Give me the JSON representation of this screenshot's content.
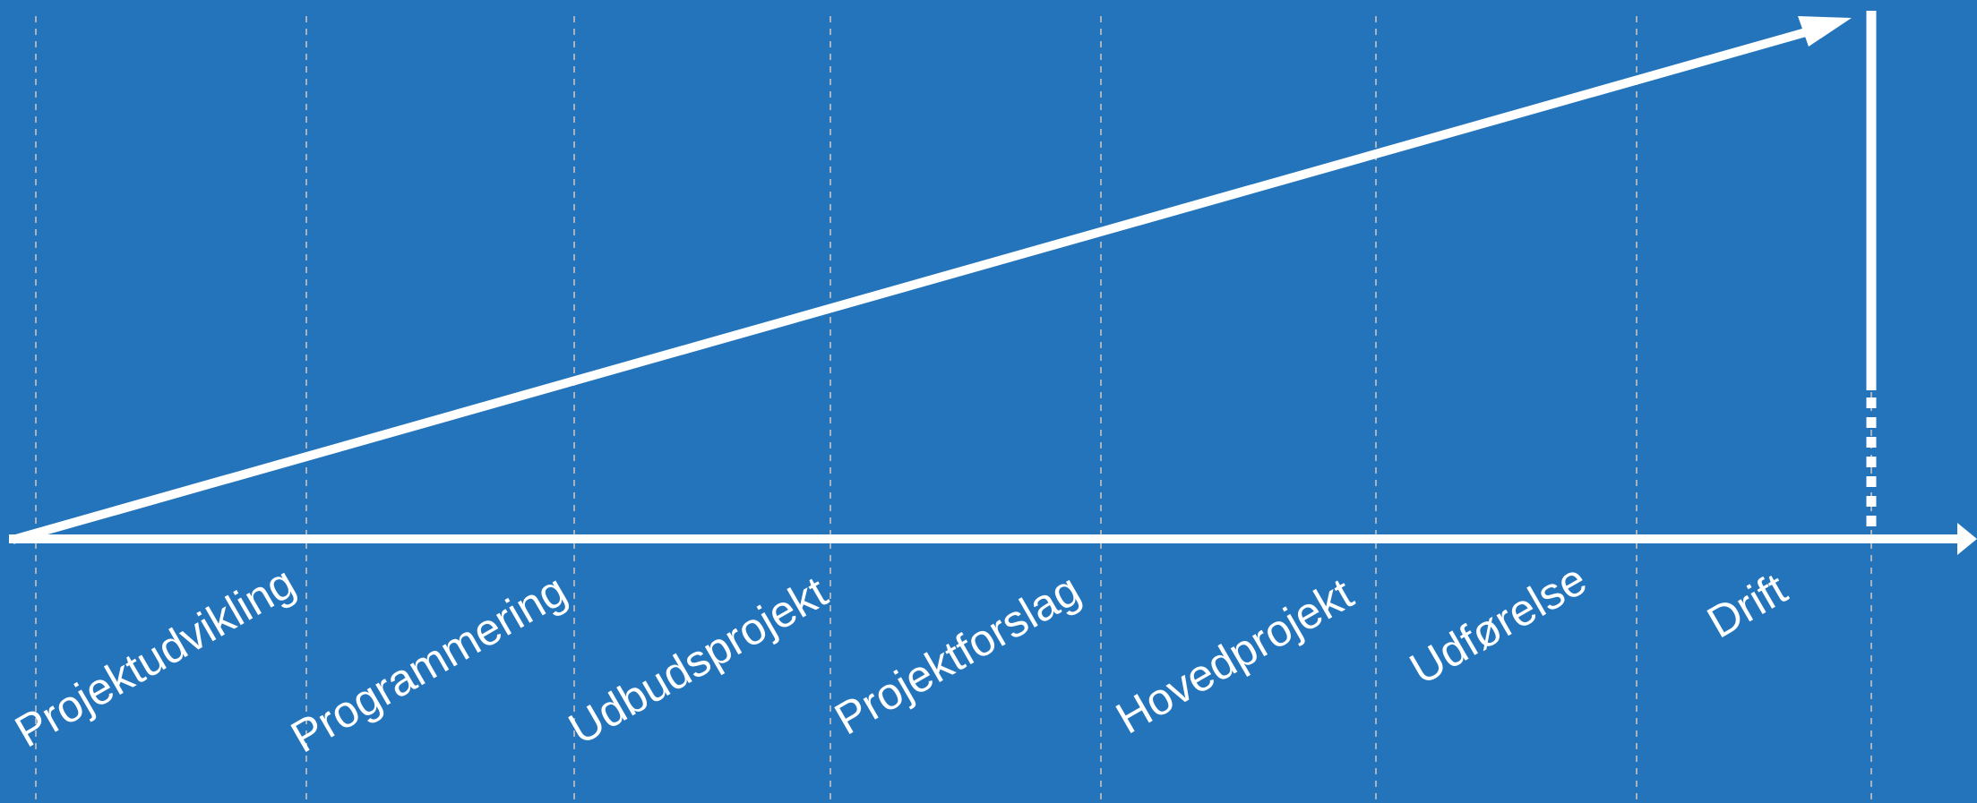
{
  "colors": {
    "background": "#2374BB",
    "foreground": "#FFFFFF",
    "guide_lines": "#A9B3BF"
  },
  "phases": [
    {
      "label": "Projektudvikling"
    },
    {
      "label": "Programmering"
    },
    {
      "label": "Udbudsprojekt"
    },
    {
      "label": "Projektforslag"
    },
    {
      "label": "Hovedprojekt"
    },
    {
      "label": "Udførelse"
    },
    {
      "label": "Drift"
    }
  ]
}
